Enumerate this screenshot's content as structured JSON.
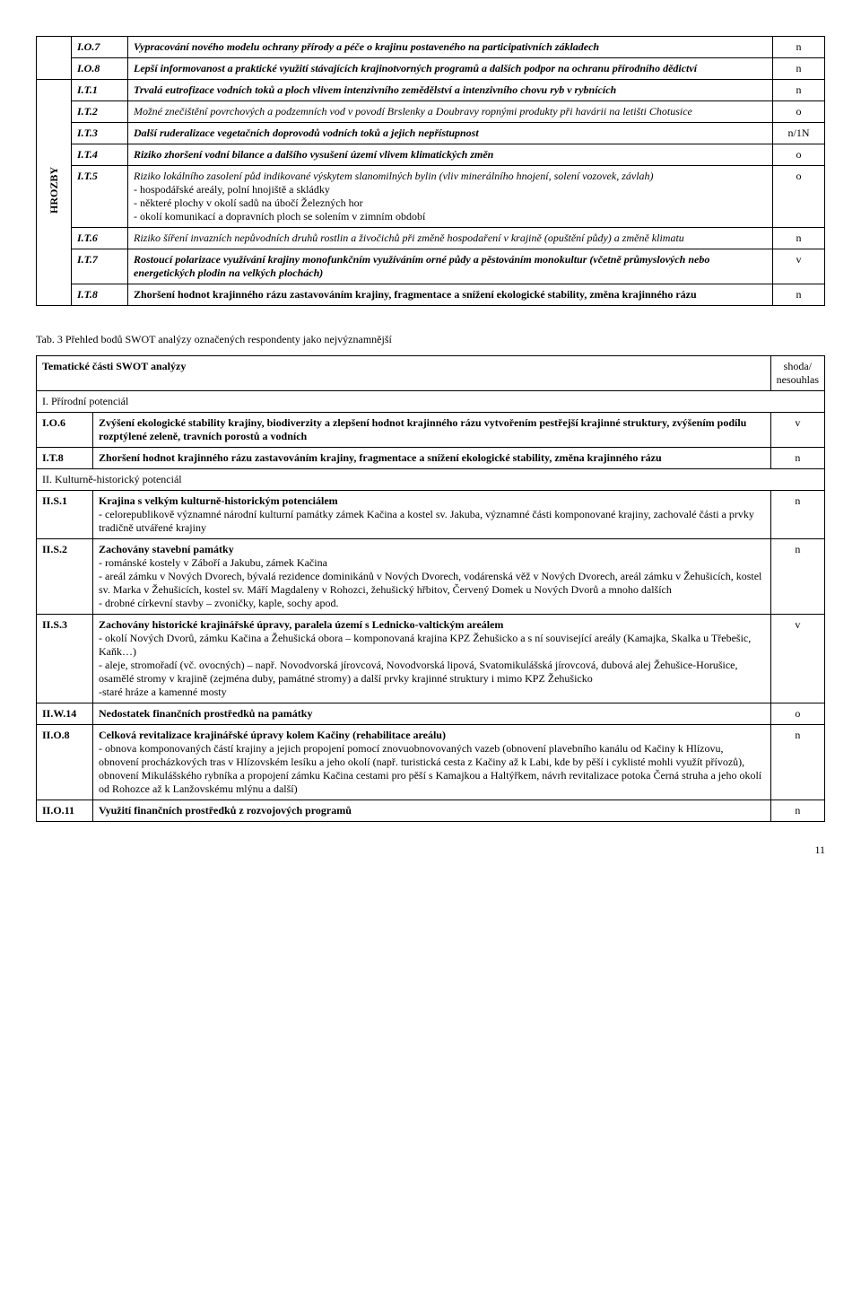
{
  "table1": {
    "vert_label": "HROZBY",
    "rows": [
      {
        "code": "I.O.7",
        "desc": "Vypracování nového modelu ochrany přírody a péče o krajinu postaveného na participativních základech",
        "val": "n",
        "bold_italic": true
      },
      {
        "code": "I.O.8",
        "desc": "Lepší informovanost a praktické využití stávajících krajinotvorných programů a dalších podpor na ochranu přírodního dědictví",
        "val": "n",
        "bold_italic": true
      },
      {
        "code": "I.T.1",
        "desc": "Trvalá eutrofizace vodních toků a ploch vlivem intenzivního zemědělství a intenzivního chovu ryb v rybnících",
        "val": "n",
        "bold_italic": true
      },
      {
        "code": "I.T.2",
        "desc": "Možné znečištění povrchových a podzemních vod v povodí Brslenky a Doubravy ropnými produkty při havárii na letišti Chotusice",
        "val": "o",
        "italic": true
      },
      {
        "code": "I.T.3",
        "desc": "Další ruderalizace vegetačních doprovodů vodních toků a jejich nepřístupnost",
        "val": "n/1N",
        "bold_italic": true
      },
      {
        "code": "I.T.4",
        "desc": "Riziko zhoršení vodní bilance a dalšího vysušení území vlivem klimatických změn",
        "val": "o",
        "bold_italic": true
      },
      {
        "code": "I.T.5",
        "desc": "Riziko lokálního zasolení půd indikované výskytem slanomilných bylin (vliv minerálního hnojení, solení vozovek, závlah)",
        "sub": [
          "- hospodářské areály, polní hnojiště a skládky",
          "- některé plochy v okolí sadů na úbočí Železných hor",
          "- okolí komunikací a dopravních ploch se solením v zimním období"
        ],
        "val": "o",
        "italic": true
      },
      {
        "code": "I.T.6",
        "desc": "Riziko šíření invazních nepůvodních druhů rostlin a živočichů při změně hospodaření v krajině (opuštění půdy) a změně klimatu",
        "val": "n",
        "italic": true
      },
      {
        "code": "I.T.7",
        "desc": "Rostoucí polarizace využívání krajiny monofunkčním využíváním orné půdy a pěstováním monokultur (včetně průmyslových nebo energetických plodin na velkých plochách)",
        "val": "v",
        "bold_italic": true
      },
      {
        "code": "I.T.8",
        "desc": "Zhoršení hodnot krajinného rázu zastavováním krajiny, fragmentace a snížení ekologické stability, změna krajinného rázu",
        "val": "n",
        "bold": true
      }
    ]
  },
  "caption": "Tab. 3 Přehled bodů SWOT analýzy označených respondenty jako nejvýznamnější",
  "table2": {
    "header_left": "Tematické části SWOT analýzy",
    "header_right": "shoda/\nnesouhlas",
    "sections": [
      {
        "title": "I. Přírodní potenciál",
        "rows": [
          {
            "code": "I.O.6",
            "desc": "Zvýšení ekologické stability krajiny, biodiverzity a zlepšení hodnot krajinného rázu vytvořením pestřejší krajinné struktury, zvýšením podílu rozptýlené zeleně, travních porostů a vodních",
            "val": "v"
          },
          {
            "code": "I.T.8",
            "desc": "Zhoršení hodnot krajinného rázu zastavováním krajiny, fragmentace a snížení ekologické stability, změna krajinného rázu",
            "val": "n"
          }
        ]
      },
      {
        "title": "II. Kulturně-historický potenciál",
        "rows": [
          {
            "code": "II.S.1",
            "desc": "Krajina s velkým kulturně-historickým potenciálem",
            "sub": [
              "- celorepublikově významné národní kulturní památky zámek Kačina a kostel sv. Jakuba, významné části komponované krajiny, zachovalé části a prvky tradičně utvářené krajiny"
            ],
            "val": "n"
          },
          {
            "code": "II.S.2",
            "desc": "Zachovány stavební památky",
            "sub": [
              "- románské kostely v Záboří a Jakubu, zámek Kačina",
              "- areál zámku v Nových Dvorech, bývalá rezidence dominikánů v Nových Dvorech, vodárenská věž v Nových Dvorech, areál zámku v Žehušicích, kostel sv. Marka v Žehušicích, kostel sv. Máří Magdaleny v Rohozci, žehušický hřbitov, Červený Domek u Nových Dvorů a mnoho dalších",
              "- drobné církevní stavby – zvoničky, kaple, sochy apod."
            ],
            "val": "n"
          },
          {
            "code": "II.S.3",
            "desc": "Zachovány historické krajinářské úpravy, paralela území s Lednicko-valtickým areálem",
            "sub": [
              "- okolí Nových Dvorů, zámku Kačina a Žehušická obora – komponovaná krajina KPZ Žehušicko a s ní související areály (Kamajka, Skalka u Třebešic, Kaňk…)",
              "- aleje, stromořadí (vč. ovocných) – např. Novodvorská jírovcová, Novodvorská lipová, Svatomikulášská jírovcová, dubová alej Žehušice-Horušice, osamělé stromy v krajině (zejména duby, památné stromy) a další prvky krajinné struktury i mimo KPZ Žehušicko",
              "-staré hráze a kamenné mosty"
            ],
            "val": "v"
          },
          {
            "code": "II.W.14",
            "desc": "Nedostatek finančních prostředků na památky",
            "val": "o"
          },
          {
            "code": "II.O.8",
            "desc": "Celková revitalizace krajinářské úpravy kolem Kačiny (rehabilitace areálu)",
            "sub": [
              "- obnova komponovaných částí krajiny a jejich propojení pomocí znovuobnovovaných vazeb (obnovení plavebního kanálu od Kačiny k Hlízovu, obnovení procházkových tras v Hlízovském lesíku a jeho okolí (např. turistická cesta z Kačiny až k Labi, kde by pěší i cyklisté mohli využít přívozů), obnovení Mikulášského rybníka a propojení zámku Kačina cestami pro pěší s Kamajkou a Haltýřkem, návrh revitalizace potoka Černá struha a jeho okolí od Rohozce až k Lanžovskému mlýnu a další)"
            ],
            "val": "n"
          },
          {
            "code": "II.O.11",
            "desc": "Využití finančních prostředků z rozvojových programů",
            "val": "n"
          }
        ]
      }
    ]
  },
  "page_number": "11"
}
